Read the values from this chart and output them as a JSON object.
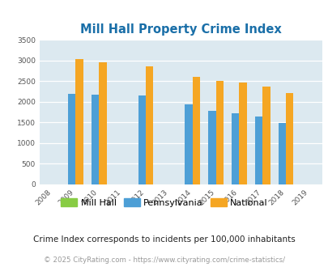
{
  "title": "Mill Hall Property Crime Index",
  "years": [
    2008,
    2009,
    2010,
    2011,
    2012,
    2013,
    2014,
    2015,
    2016,
    2017,
    2018,
    2019
  ],
  "mill_hall": [
    0,
    0,
    0,
    0,
    0,
    0,
    0,
    0,
    0,
    0,
    0,
    0
  ],
  "pennsylvania": [
    0,
    2200,
    2175,
    0,
    2150,
    0,
    1940,
    1790,
    1720,
    1640,
    1490,
    0
  ],
  "national": [
    0,
    3040,
    2960,
    0,
    2860,
    0,
    2600,
    2500,
    2470,
    2370,
    2210,
    0
  ],
  "ylim": [
    0,
    3500
  ],
  "yticks": [
    0,
    500,
    1000,
    1500,
    2000,
    2500,
    3000,
    3500
  ],
  "bar_width": 0.32,
  "color_mill_hall": "#88cc44",
  "color_pennsylvania": "#4d9fd6",
  "color_national": "#f5a623",
  "bg_color": "#dce9f0",
  "title_color": "#1a6fa8",
  "legend_labels": [
    "Mill Hall",
    "Pennsylvania",
    "National"
  ],
  "footnote1": "Crime Index corresponds to incidents per 100,000 inhabitants",
  "footnote2": "© 2025 CityRating.com - https://www.cityrating.com/crime-statistics/",
  "grid_color": "#ffffff"
}
